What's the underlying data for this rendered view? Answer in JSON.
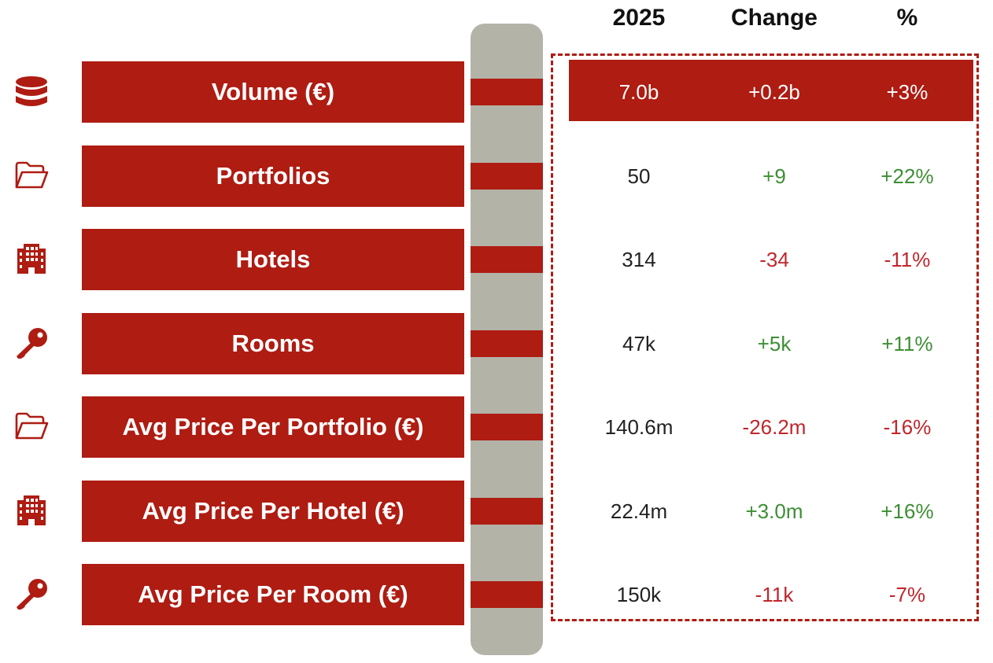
{
  "headers": {
    "year": "2025",
    "change": "Change",
    "pct": "%"
  },
  "colors": {
    "accent": "#ae1c12",
    "pillar": "#b3b3a8",
    "positive": "#3e8e35",
    "negative": "#c0262c"
  },
  "rows": [
    {
      "icon": "database-icon",
      "label": "Volume (€)",
      "value": "7.0b",
      "change": "+0.2b",
      "pct": "+3%",
      "trend": "highlight"
    },
    {
      "icon": "folder-open-icon",
      "label": "Portfolios",
      "value": "50",
      "change": "+9",
      "pct": "+22%",
      "trend": "pos"
    },
    {
      "icon": "building-icon",
      "label": "Hotels",
      "value": "314",
      "change": "-34",
      "pct": "-11%",
      "trend": "neg"
    },
    {
      "icon": "key-icon",
      "label": "Rooms",
      "value": "47k",
      "change": "+5k",
      "pct": "+11%",
      "trend": "pos"
    },
    {
      "icon": "folder-open-icon",
      "label": "Avg Price Per Portfolio (€)",
      "value": "140.6m",
      "change": "-26.2m",
      "pct": "-16%",
      "trend": "neg"
    },
    {
      "icon": "building-icon",
      "label": "Avg Price Per Hotel (€)",
      "value": "22.4m",
      "change": "+3.0m",
      "pct": "+16%",
      "trend": "pos"
    },
    {
      "icon": "key-icon",
      "label": "Avg Price Per Room (€)",
      "value": "150k",
      "change": "-11k",
      "pct": "-7%",
      "trend": "neg"
    }
  ]
}
